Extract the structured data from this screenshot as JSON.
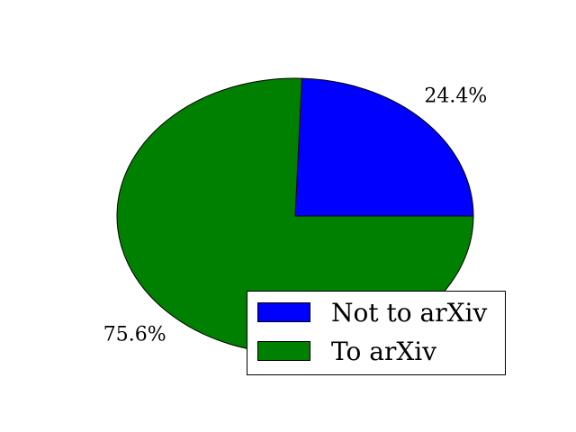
{
  "chart_data": {
    "type": "pie",
    "categories": [
      "Not to arXiv",
      "To arXiv"
    ],
    "values": [
      24.4,
      75.6
    ],
    "labels": [
      "24.4%",
      "75.6%"
    ],
    "colors": [
      "#0000ff",
      "#008000"
    ],
    "start_angle_deg": 0,
    "direction": "counterclockwise",
    "legend": {
      "placement": "lower-right",
      "entries": [
        "Not to arXiv",
        "To arXiv"
      ]
    },
    "title": "",
    "grid": false
  }
}
